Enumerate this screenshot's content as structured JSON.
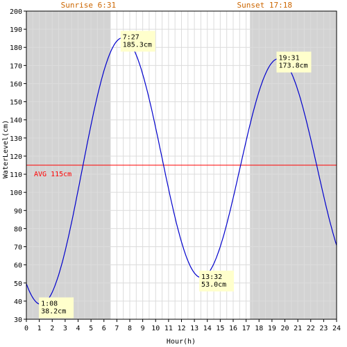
{
  "chart_data": {
    "type": "line",
    "title": "",
    "xlabel": "Hour(h)",
    "ylabel": "WaterLevel(cm)",
    "xlim": [
      0,
      24
    ],
    "ylim": [
      30,
      200
    ],
    "x_ticks": [
      "0",
      "1",
      "2",
      "3",
      "4",
      "5",
      "6",
      "7",
      "8",
      "9",
      "10",
      "11",
      "12",
      "13",
      "14",
      "15",
      "16",
      "17",
      "18",
      "19",
      "20",
      "21",
      "22",
      "23",
      "24"
    ],
    "y_ticks": [
      "30",
      "40",
      "50",
      "60",
      "70",
      "80",
      "90",
      "100",
      "110",
      "120",
      "130",
      "140",
      "150",
      "160",
      "170",
      "180",
      "190",
      "200"
    ],
    "grid": true,
    "sunrise": {
      "label": "Sunrise 6:31",
      "hour": 6.517
    },
    "sunset": {
      "label": "Sunset 17:18",
      "hour": 17.3
    },
    "average": {
      "label": "AVG 115cm",
      "value": 115
    },
    "series": [
      {
        "color": "#0000cc",
        "extremes": [
          {
            "x": 1.133,
            "y": 38.2,
            "time": "1:08",
            "value": "38.2cm"
          },
          {
            "x": 7.45,
            "y": 185.3,
            "time": "7:27",
            "value": "185.3cm"
          },
          {
            "x": 13.533,
            "y": 53.0,
            "time": "13:32",
            "value": "53.0cm"
          },
          {
            "x": 19.517,
            "y": 173.8,
            "time": "19:31",
            "value": "173.8cm"
          }
        ],
        "start": {
          "x": 0,
          "y": 51
        },
        "end": {
          "x": 24,
          "y": 77
        }
      }
    ],
    "colors": {
      "night": "#d3d3d3",
      "grid": "#dcdcdc",
      "avg_line": "#ff0000",
      "sun_label": "#cc6600",
      "label_bg": "#ffffcc",
      "axis": "#000000"
    }
  }
}
